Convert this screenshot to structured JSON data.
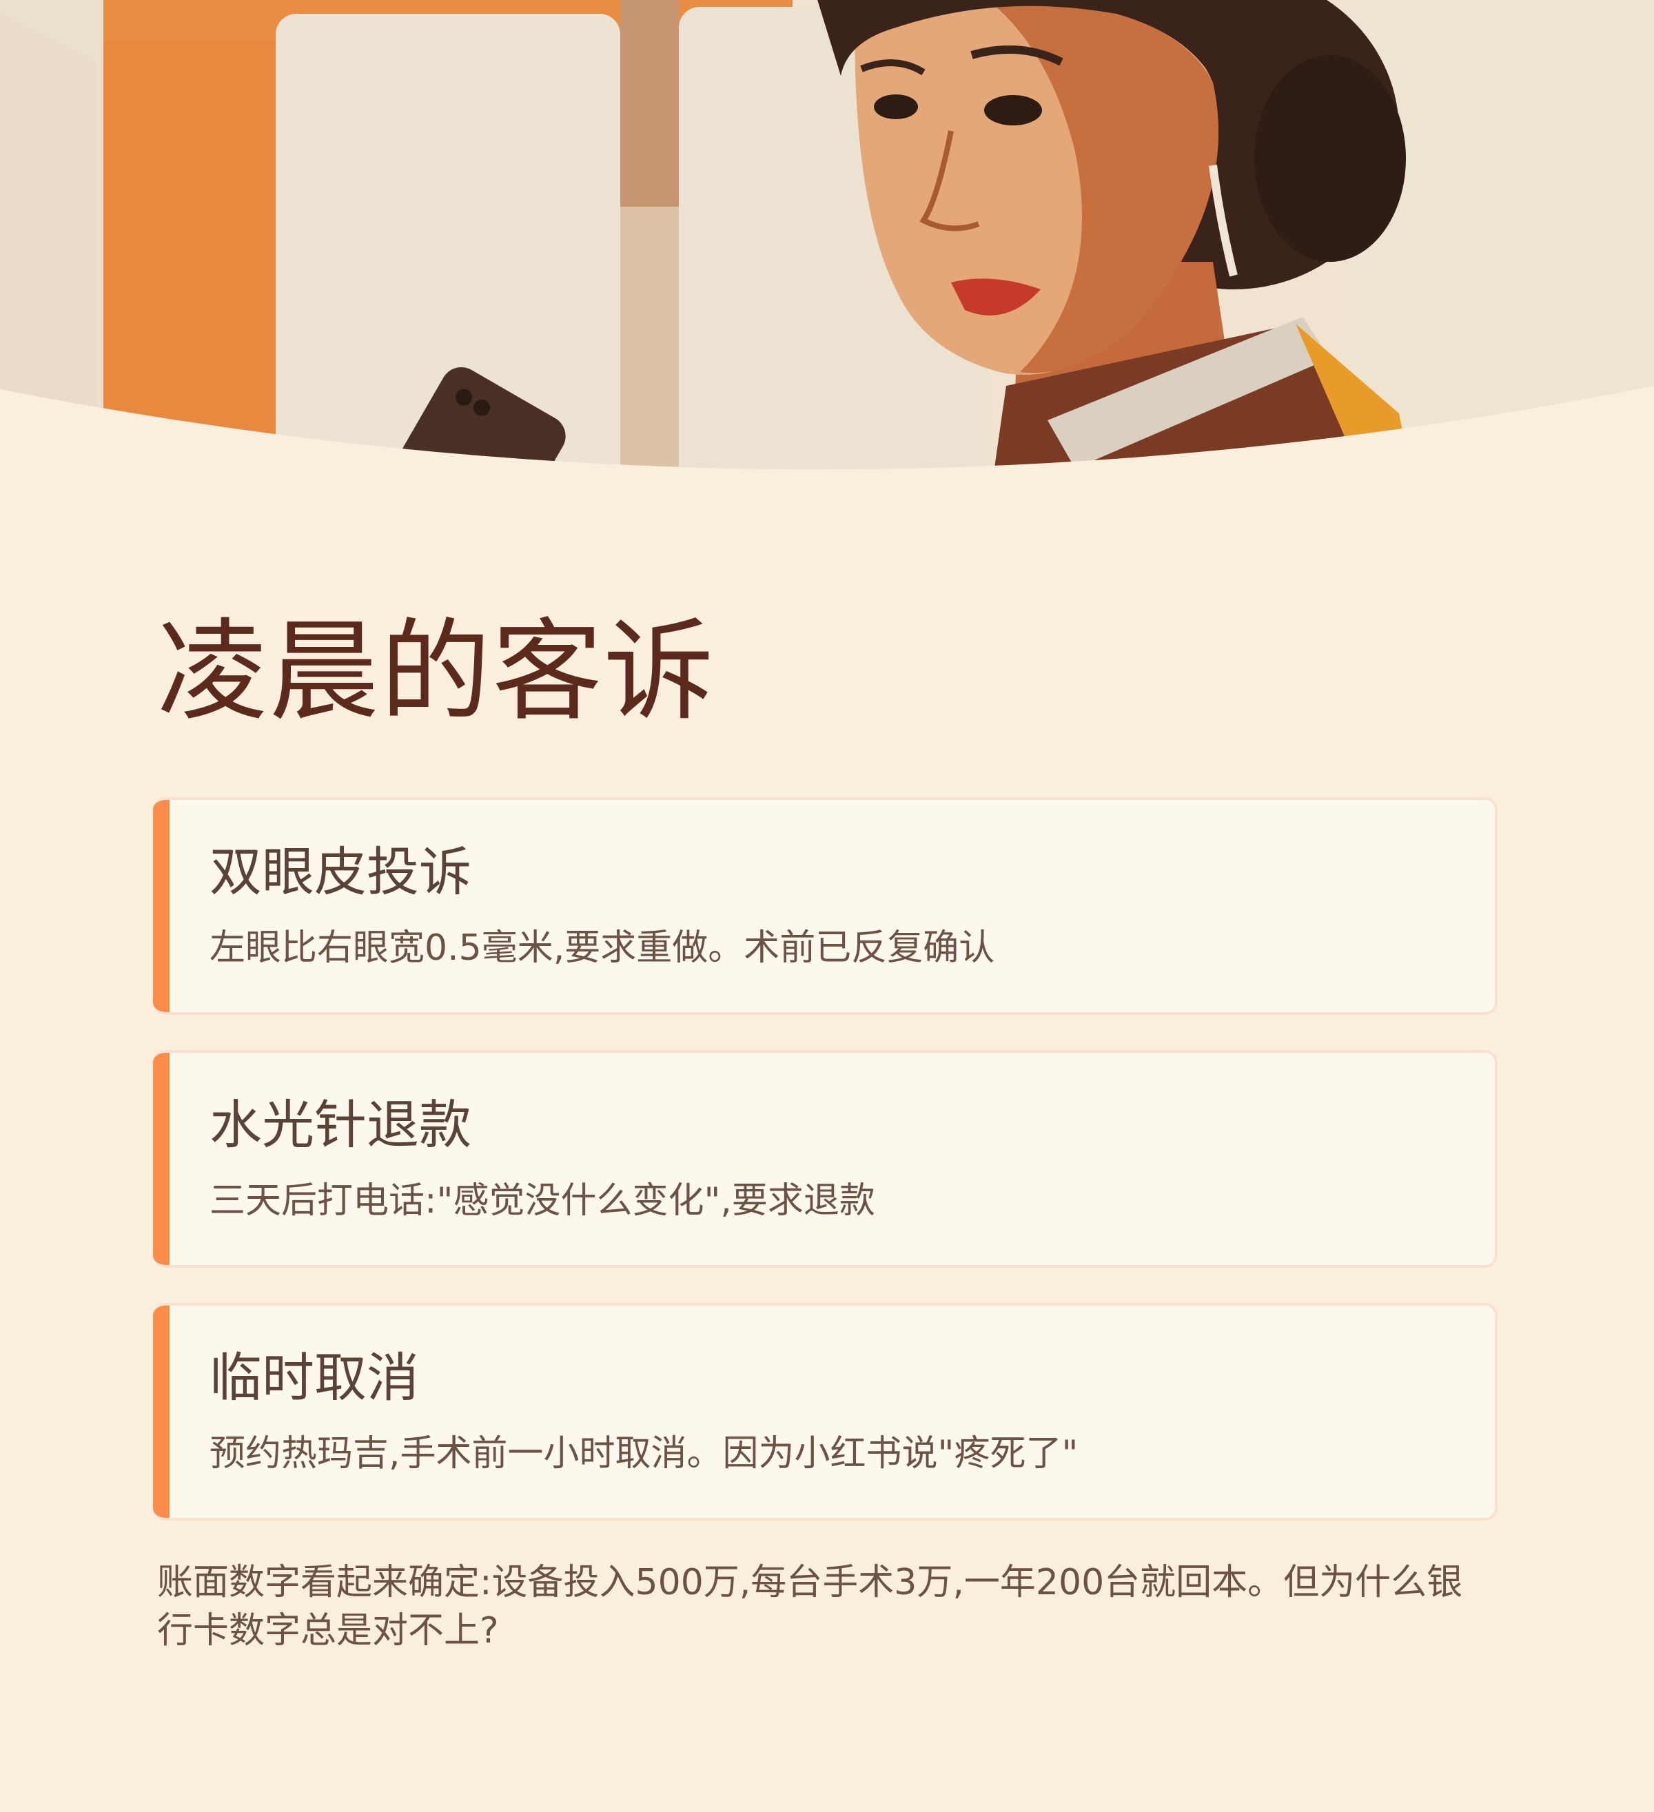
{
  "colors": {
    "background": "#f9efdc",
    "title": "#5c2a1d",
    "accent": "#fb8c4b",
    "card_bg": "#fdf8ee",
    "card_border": "#fbe0d0",
    "text": "#6b5244"
  },
  "hero": {
    "illustration": "woman-looking-at-phone-illustration"
  },
  "page": {
    "title": "凌晨的客诉"
  },
  "cards": [
    {
      "title": "双眼皮投诉",
      "desc": "左眼比右眼宽0.5毫米,要求重做。术前已反复确认"
    },
    {
      "title": "水光针退款",
      "desc": "三天后打电话:\"感觉没什么变化\",要求退款"
    },
    {
      "title": "临时取消",
      "desc": "预约热玛吉,手术前一小时取消。因为小红书说\"疼死了\""
    }
  ],
  "summary": "账面数字看起来确定:设备投入500万,每台手术3万,一年200台就回本。但为什么银行卡数字总是对不上?"
}
